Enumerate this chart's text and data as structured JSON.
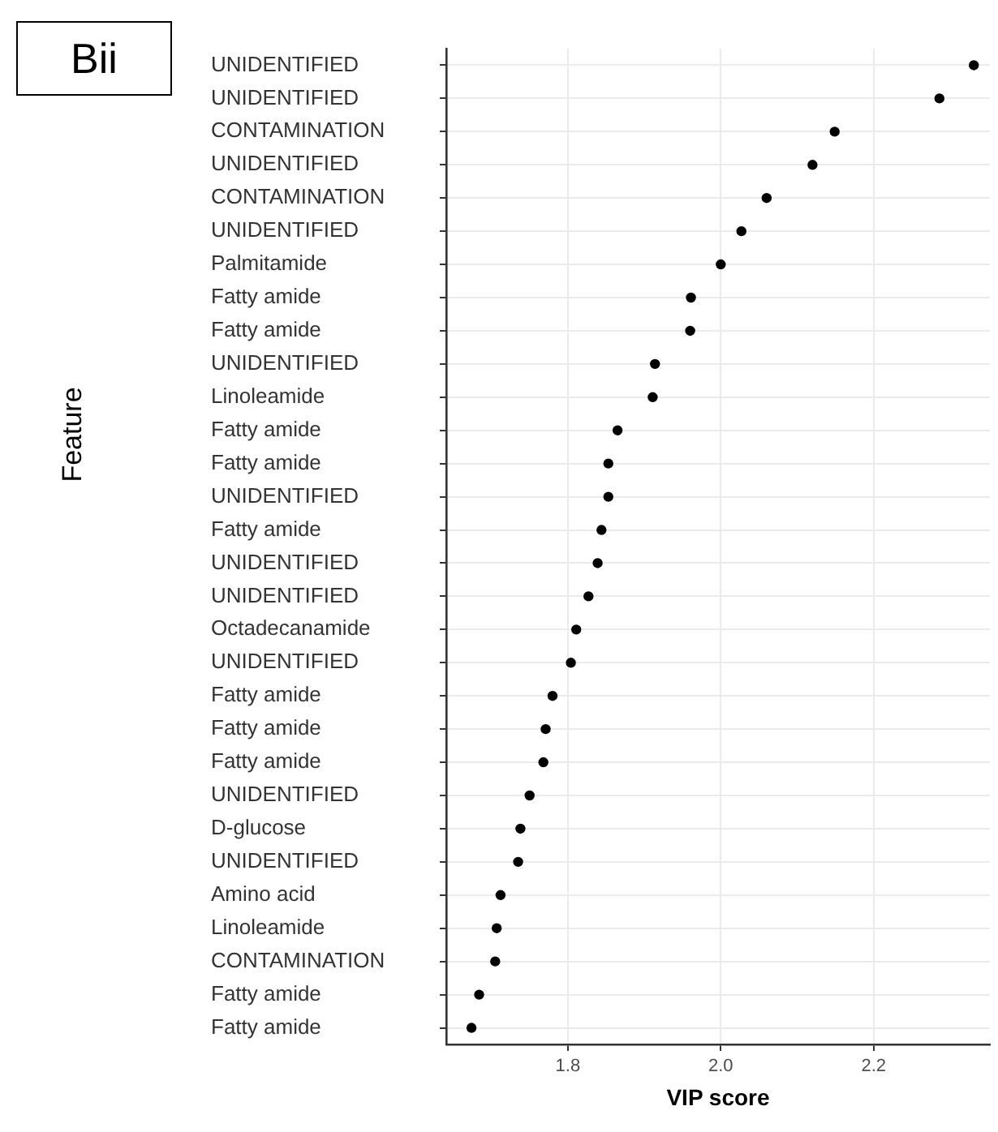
{
  "chart_data": {
    "type": "scatter",
    "title": "Bii",
    "xlabel": "VIP score",
    "ylabel": "Feature",
    "categories": [
      "UNIDENTIFIED",
      "UNIDENTIFIED",
      "CONTAMINATION",
      "UNIDENTIFIED",
      "CONTAMINATION",
      "UNIDENTIFIED",
      "Palmitamide",
      "Fatty amide",
      "Fatty amide",
      "UNIDENTIFIED",
      "Linoleamide",
      "Fatty amide",
      "Fatty amide",
      "UNIDENTIFIED",
      "Fatty amide",
      "UNIDENTIFIED",
      "UNIDENTIFIED",
      "Octadecanamide",
      "UNIDENTIFIED",
      "Fatty amide",
      "Fatty amide",
      "Fatty amide",
      "UNIDENTIFIED",
      "D-glucose",
      "UNIDENTIFIED",
      "Amino acid",
      "Linoleamide",
      "CONTAMINATION",
      "Fatty amide",
      "Fatty amide"
    ],
    "series": [
      {
        "color": "#000000",
        "values": [
          2.331,
          2.286,
          2.149,
          2.12,
          2.06,
          2.027,
          2.0,
          1.961,
          1.96,
          1.914,
          1.911,
          1.865,
          1.853,
          1.853,
          1.844,
          1.839,
          1.827,
          1.811,
          1.804,
          1.78,
          1.771,
          1.768,
          1.75,
          1.738,
          1.735,
          1.712,
          1.707,
          1.705,
          1.684,
          1.674
        ]
      }
    ],
    "orientation": "horizontal",
    "xlim": [
      1.641,
      2.352
    ],
    "xticks": [
      1.8,
      {
        "value": 2,
        "label": "2.0"
      },
      2.2
    ],
    "grid": true,
    "legend": false,
    "marker": "circle"
  }
}
